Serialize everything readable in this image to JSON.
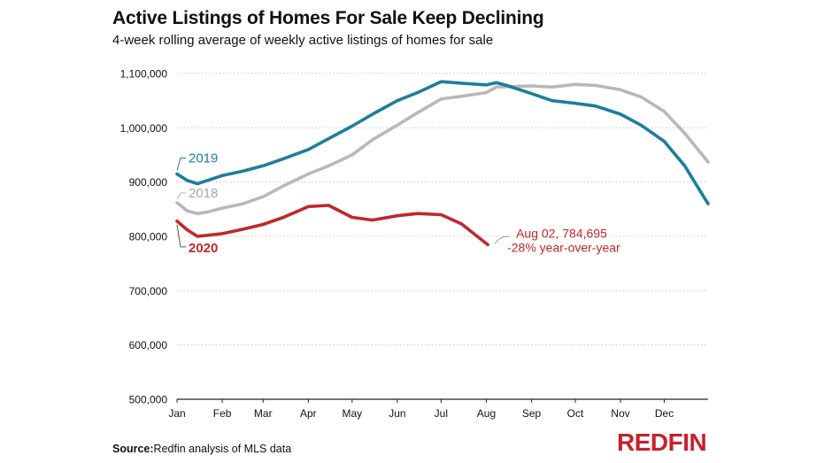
{
  "header": {
    "title": "Active Listings of Homes For Sale Keep Declining",
    "subtitle": "4-week rolling average of weekly active listings of homes for sale"
  },
  "footer": {
    "source_label": "Source:",
    "source_text": "Redfin analysis of MLS data",
    "logo_text": "REDFIN"
  },
  "colors": {
    "series_2019": "#1a7f9c",
    "series_2018": "#b8b8b8",
    "series_2020": "#c0272d",
    "grid": "#c8c8c8"
  },
  "chart_data": {
    "type": "line",
    "title": "Active Listings of Homes For Sale Keep Declining",
    "subtitle": "4-week rolling average of weekly active listings of homes for sale",
    "xlabel": "",
    "ylabel": "",
    "x_ticks": [
      "Jan",
      "Feb",
      "Mar",
      "Apr",
      "May",
      "Jun",
      "Jul",
      "Aug",
      "Sep",
      "Oct",
      "Nov",
      "Dec"
    ],
    "y_ticks": [
      "500,000",
      "600,000",
      "700,000",
      "800,000",
      "900,000",
      "1,000,000",
      "1,100,000"
    ],
    "ylim": [
      500000,
      1100000
    ],
    "grid": "horizontal dotted",
    "legend": "inline labels",
    "series": [
      {
        "name": "2019",
        "color": "#1a7f9c",
        "points": [
          [
            "Jan 01",
            915000
          ],
          [
            "Jan 08",
            903000
          ],
          [
            "Jan 15",
            897000
          ],
          [
            "Jan 22",
            903000
          ],
          [
            "Feb 01",
            912000
          ],
          [
            "Feb 15",
            920000
          ],
          [
            "Mar 01",
            930000
          ],
          [
            "Mar 15",
            943000
          ],
          [
            "Apr 01",
            960000
          ],
          [
            "Apr 15",
            980000
          ],
          [
            "May 01",
            1003000
          ],
          [
            "May 15",
            1025000
          ],
          [
            "Jun 01",
            1050000
          ],
          [
            "Jun 15",
            1065000
          ],
          [
            "Jul 01",
            1085000
          ],
          [
            "Jul 15",
            1082000
          ],
          [
            "Aug 01",
            1079000
          ],
          [
            "Aug 08",
            1083000
          ],
          [
            "Aug 15",
            1078000
          ],
          [
            "Sep 01",
            1063000
          ],
          [
            "Sep 15",
            1050000
          ],
          [
            "Oct 01",
            1045000
          ],
          [
            "Oct 15",
            1040000
          ],
          [
            "Nov 01",
            1025000
          ],
          [
            "Nov 15",
            1005000
          ],
          [
            "Dec 01",
            975000
          ],
          [
            "Dec 15",
            930000
          ],
          [
            "Dec 31",
            860000
          ]
        ]
      },
      {
        "name": "2018",
        "color": "#b8b8b8",
        "points": [
          [
            "Jan 01",
            862000
          ],
          [
            "Jan 08",
            847000
          ],
          [
            "Jan 15",
            842000
          ],
          [
            "Jan 22",
            845000
          ],
          [
            "Feb 01",
            852000
          ],
          [
            "Feb 15",
            860000
          ],
          [
            "Mar 01",
            873000
          ],
          [
            "Mar 15",
            893000
          ],
          [
            "Apr 01",
            915000
          ],
          [
            "Apr 15",
            930000
          ],
          [
            "May 01",
            950000
          ],
          [
            "May 15",
            978000
          ],
          [
            "Jun 01",
            1005000
          ],
          [
            "Jun 15",
            1028000
          ],
          [
            "Jul 01",
            1053000
          ],
          [
            "Jul 15",
            1058000
          ],
          [
            "Aug 01",
            1065000
          ],
          [
            "Aug 08",
            1075000
          ],
          [
            "Sep 01",
            1077000
          ],
          [
            "Sep 15",
            1075000
          ],
          [
            "Oct 01",
            1080000
          ],
          [
            "Oct 15",
            1078000
          ],
          [
            "Nov 01",
            1070000
          ],
          [
            "Nov 15",
            1057000
          ],
          [
            "Dec 01",
            1030000
          ],
          [
            "Dec 15",
            990000
          ],
          [
            "Dec 31",
            937000
          ]
        ]
      },
      {
        "name": "2020",
        "color": "#c0272d",
        "points": [
          [
            "Jan 01",
            828000
          ],
          [
            "Jan 08",
            812000
          ],
          [
            "Jan 15",
            800000
          ],
          [
            "Feb 01",
            805000
          ],
          [
            "Feb 15",
            813000
          ],
          [
            "Mar 01",
            822000
          ],
          [
            "Mar 15",
            835000
          ],
          [
            "Apr 01",
            855000
          ],
          [
            "Apr 15",
            857000
          ],
          [
            "May 01",
            835000
          ],
          [
            "May 15",
            830000
          ],
          [
            "Jun 01",
            838000
          ],
          [
            "Jun 15",
            842000
          ],
          [
            "Jul 01",
            840000
          ],
          [
            "Jul 15",
            823000
          ],
          [
            "Aug 02",
            784695
          ]
        ]
      }
    ],
    "annotations": [
      {
        "text": "2019",
        "series": "2019"
      },
      {
        "text": "2018",
        "series": "2018"
      },
      {
        "text": "2020",
        "series": "2020"
      },
      {
        "text": "Aug 02, 784,695",
        "series": "2020"
      },
      {
        "text": "-28% year-over-year",
        "series": "2020"
      }
    ]
  }
}
